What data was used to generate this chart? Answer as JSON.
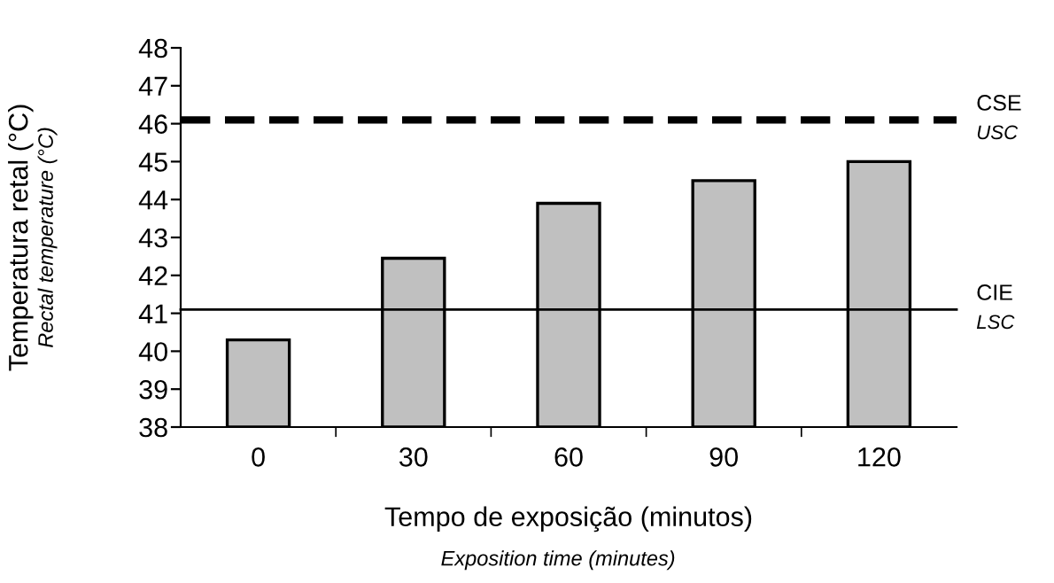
{
  "chart_data": {
    "type": "bar",
    "categories": [
      "0",
      "30",
      "60",
      "90",
      "120"
    ],
    "values": [
      40.3,
      42.45,
      43.9,
      44.5,
      45.0
    ],
    "color": "#c0c0c0",
    "ylim": [
      38,
      48
    ],
    "yticks": [
      38,
      39,
      40,
      41,
      42,
      43,
      44,
      45,
      46,
      47,
      48
    ],
    "xlabel": "Tempo de exposição (minutos)",
    "ylabel": "Temperatura retal (°C)",
    "ref_lines": [
      {
        "axis": "y",
        "value": 46.1,
        "label": "CSE",
        "line_style": "dashed",
        "color": "#000000"
      },
      {
        "axis": "y",
        "value": 41.1,
        "label": "CIE",
        "line_style": "solid",
        "color": "#000000"
      }
    ],
    "annotations": [
      "Exposition time (minutes)",
      "Rectal temperature (°C)",
      "USC",
      "LSC"
    ],
    "grid": false
  }
}
